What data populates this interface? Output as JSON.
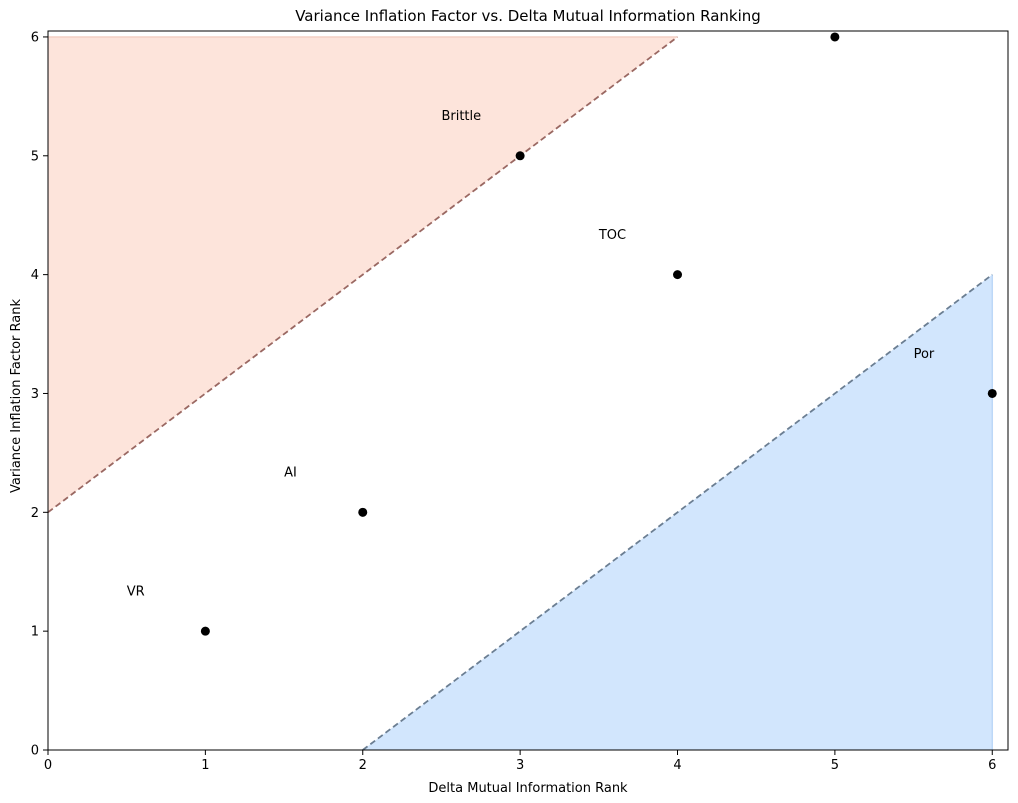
{
  "chart_data": {
    "type": "scatter",
    "title": "Variance Inflation Factor vs. Delta Mutual Information Ranking",
    "xlabel": "Delta Mutual Information Rank",
    "ylabel": "Variance Inflation Factor Rank",
    "xlim": [
      0,
      6.1
    ],
    "ylim": [
      0,
      6.05
    ],
    "xticks": [
      "0",
      "1",
      "2",
      "3",
      "4",
      "5",
      "6"
    ],
    "yticks": [
      "0",
      "1",
      "2",
      "3",
      "4",
      "5",
      "6"
    ],
    "grid": false,
    "points": [
      {
        "x": 1,
        "y": 1
      },
      {
        "x": 2,
        "y": 2
      },
      {
        "x": 3,
        "y": 5
      },
      {
        "x": 4,
        "y": 4
      },
      {
        "x": 5,
        "y": 6
      },
      {
        "x": 6,
        "y": 3
      }
    ],
    "annotations": [
      {
        "text": "VR",
        "x": 0.5,
        "y": 1.3
      },
      {
        "text": "AI",
        "x": 1.5,
        "y": 2.3
      },
      {
        "text": "Brittle",
        "x": 2.5,
        "y": 5.3
      },
      {
        "text": "TOC",
        "x": 3.5,
        "y": 4.3
      },
      {
        "text": "Por",
        "x": 5.5,
        "y": 3.3
      }
    ],
    "regions": [
      {
        "polygon": [
          [
            0,
            2
          ],
          [
            4,
            6
          ],
          [
            0,
            6
          ]
        ],
        "color": "#fde4db"
      },
      {
        "polygon": [
          [
            2,
            0
          ],
          [
            6,
            4
          ],
          [
            6,
            0
          ]
        ],
        "color": "#d2e6fd"
      }
    ],
    "reference_lines": [
      {
        "from": [
          0,
          2
        ],
        "to": [
          4,
          6
        ],
        "color": "#9a6862"
      },
      {
        "from": [
          2,
          0
        ],
        "to": [
          6,
          4
        ],
        "color": "#6b7e92"
      }
    ],
    "colors": {
      "point": "#000000",
      "axis": "#000000",
      "region_upper_edge": "#f3cfc3",
      "region_lower_edge": "#bdd8f7"
    }
  }
}
